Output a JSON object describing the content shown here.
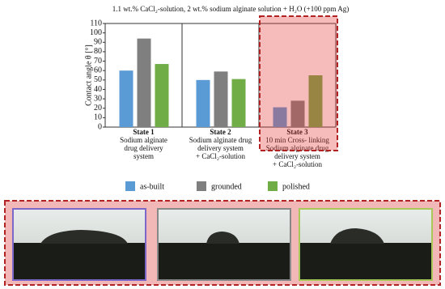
{
  "chart_data": {
    "type": "bar",
    "title": "1.1 wt.% CaCl₂-solution, 2 wt.% sodium alginate solution + H₂O (+100 ppm Ag)",
    "y_label": "Contact angle θ [°]",
    "categories": [
      "State 1",
      "State 2",
      "State 3"
    ],
    "category_notes": [
      [
        "Sodium alginate",
        "drug delivery",
        "system"
      ],
      [
        "Sodium alginate drug",
        "delivery system",
        "+ CaCl₂-solution"
      ],
      [
        "10 min Cross- linking",
        "Sodium alginate drug",
        "delivery system",
        "+ CaCl₂-solution"
      ]
    ],
    "series": [
      {
        "name": "as-built",
        "color": "#5b9bd5",
        "values": [
          60,
          50,
          21
        ]
      },
      {
        "name": "grounded",
        "color": "#7f7f7f",
        "values": [
          94,
          59,
          28
        ]
      },
      {
        "name": "polished",
        "color": "#70ad47",
        "values": [
          67,
          51,
          55
        ]
      }
    ],
    "ylim": [
      0,
      110
    ],
    "yticks": [
      0,
      10,
      20,
      30,
      40,
      50,
      60,
      70,
      80,
      90,
      100,
      110
    ],
    "highlight_index": 2
  }
}
